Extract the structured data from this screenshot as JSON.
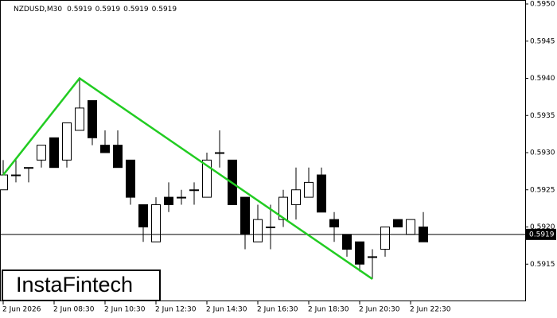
{
  "chart_data": {
    "type": "candlestick",
    "symbol": "NZDUSD,M30",
    "header_prices": [
      0.5919,
      0.5919,
      0.5919,
      0.5919
    ],
    "categories": [
      "2 Jun 2026",
      null,
      null,
      null,
      "2 Jun 08:30",
      null,
      null,
      null,
      "2 Jun 10:30",
      null,
      null,
      null,
      "2 Jun 12:30",
      null,
      null,
      null,
      "2 Jun 14:30",
      null,
      null,
      null,
      "2 Jun 16:30",
      null,
      null,
      null,
      "2 Jun 18:30",
      null,
      null,
      null,
      "2 Jun 20:30",
      null,
      null,
      null,
      "2 Jun 22:30",
      null
    ],
    "open": [
      0.5925,
      0.5927,
      0.5928,
      0.5929,
      0.5932,
      0.5929,
      0.5933,
      0.5937,
      0.5931,
      0.5931,
      0.5929,
      0.5923,
      0.5918,
      0.5924,
      0.5924,
      0.5925,
      0.5924,
      0.593,
      0.5929,
      0.5924,
      0.5918,
      0.592,
      0.5921,
      0.5923,
      0.5924,
      0.5927,
      0.5921,
      0.5919,
      0.5918,
      0.5916,
      0.5917,
      0.5921,
      0.5919,
      0.592
    ],
    "high": [
      0.5929,
      0.5929,
      0.5928,
      0.5931,
      0.5932,
      0.5934,
      0.594,
      0.5937,
      0.5933,
      0.5933,
      0.5929,
      0.5923,
      0.5924,
      0.5926,
      0.5925,
      0.5926,
      0.593,
      0.5933,
      0.5929,
      0.5924,
      0.5923,
      0.5923,
      0.5925,
      0.5928,
      0.5928,
      0.5928,
      0.5922,
      0.5919,
      0.5918,
      0.5917,
      0.592,
      0.5921,
      0.5921,
      0.5922
    ],
    "low": [
      0.5925,
      0.5926,
      0.5926,
      0.5928,
      0.5928,
      0.5928,
      0.5933,
      0.5931,
      0.593,
      0.5928,
      0.5923,
      0.5918,
      0.5918,
      0.5922,
      0.5923,
      0.5923,
      0.5924,
      0.5928,
      0.5923,
      0.5917,
      0.5918,
      0.5917,
      0.592,
      0.5921,
      0.5924,
      0.5922,
      0.5918,
      0.5916,
      0.5914,
      0.5913,
      0.5916,
      0.592,
      0.5919,
      0.5918
    ],
    "close": [
      0.5927,
      0.5927,
      0.5928,
      0.5931,
      0.5928,
      0.5934,
      0.5936,
      0.5932,
      0.593,
      0.5928,
      0.5924,
      0.592,
      0.5923,
      0.5923,
      0.5924,
      0.5925,
      0.5929,
      0.593,
      0.5923,
      0.5919,
      0.5921,
      0.592,
      0.5924,
      0.5925,
      0.5926,
      0.5922,
      0.592,
      0.5917,
      0.5915,
      0.5916,
      0.592,
      0.592,
      0.5921,
      0.5918
    ],
    "up_color": "#ffffff",
    "down_color": "#000000",
    "ylim": [
      0.591,
      0.595
    ],
    "yticks": [
      0.5915,
      {
        "value": 0.592,
        "label": "0.5920"
      },
      0.5925,
      {
        "value": 0.593,
        "label": "0.5930"
      },
      0.5935,
      {
        "value": 0.594,
        "label": "0.5940"
      },
      0.5945,
      {
        "value": 0.595,
        "label": "0.5950"
      }
    ],
    "current_price": 0.5919,
    "pattern_line": {
      "color": "#22cc22",
      "x": [
        0,
        6,
        29
      ],
      "y": [
        0.5927,
        0.594,
        0.5913
      ]
    }
  },
  "logo": "InstaFintech"
}
